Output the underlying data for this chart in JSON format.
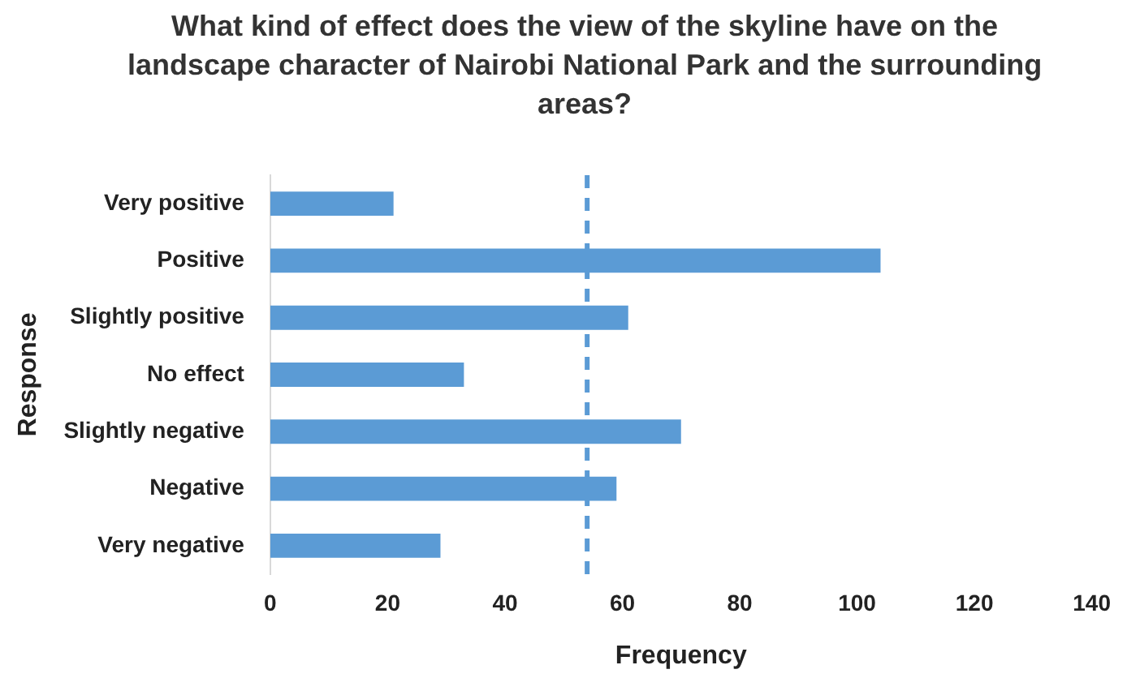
{
  "chart_data": {
    "type": "bar",
    "orientation": "horizontal",
    "title": "What kind of effect does the view of the skyline have on the landscape character of Nairobi National Park and the surrounding areas?",
    "xlabel": "Frequency",
    "ylabel": "Response",
    "categories": [
      "Very positive",
      "Positive",
      "Slightly positive",
      "No effect",
      "Slightly negative",
      "Negative",
      "Very negative"
    ],
    "values": [
      21,
      104,
      61,
      33,
      70,
      59,
      29
    ],
    "color": "#5b9bd5",
    "xlim": [
      0,
      140
    ],
    "xticks": [
      0,
      20,
      40,
      60,
      80,
      100,
      120,
      140
    ],
    "grid": false,
    "legend": false,
    "ref_lines": [
      {
        "axis": "x",
        "value": 54,
        "color": "#5b9bd5",
        "line_style": "dashed"
      }
    ]
  }
}
